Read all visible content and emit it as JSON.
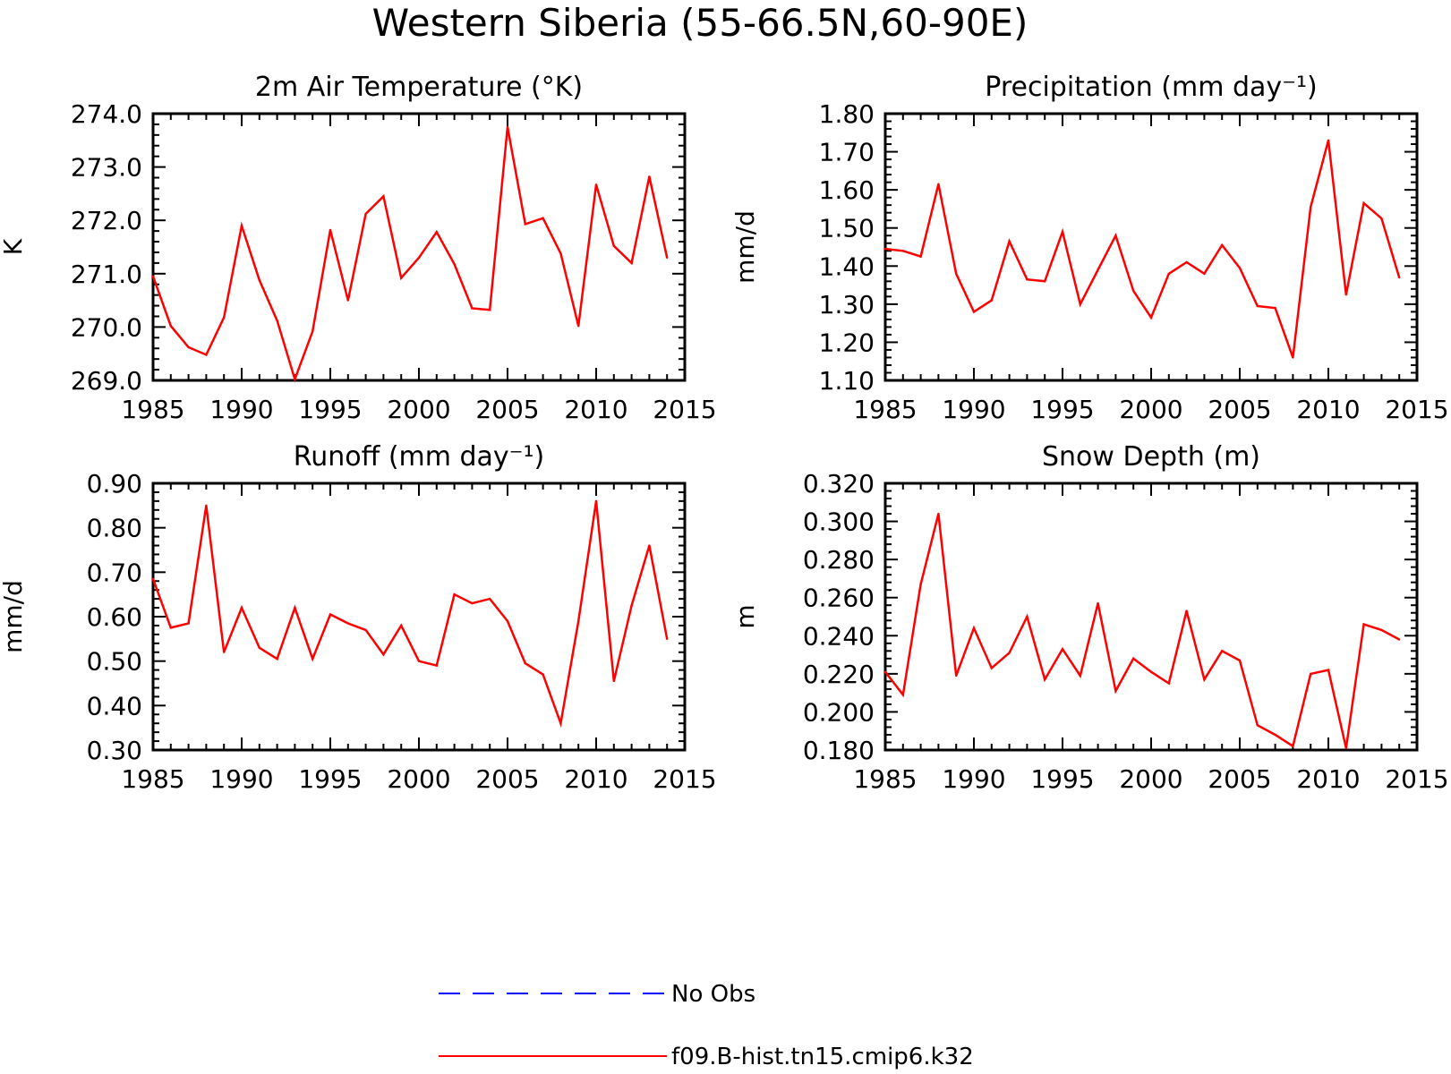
{
  "figure": {
    "title": "Western Siberia (55-66.5N,60-90E)",
    "colors": {
      "model": "#ff0000",
      "obs": "#0000ff",
      "axes": "#000000"
    }
  },
  "legend": {
    "entries": [
      {
        "label": "No Obs",
        "style": "dashed",
        "color": "#0000ff"
      },
      {
        "label": "f09.B-hist.tn15.cmip6.k32",
        "style": "solid",
        "color": "#ff0000"
      }
    ]
  },
  "chart_data": [
    {
      "type": "line",
      "title": "2m Air Temperature (°K)",
      "xlabel": "",
      "ylabel": "K",
      "xlim": [
        1985,
        2015
      ],
      "ylim": [
        269.0,
        274.0
      ],
      "xticks": [
        1985,
        1990,
        1995,
        2000,
        2005,
        2010,
        2015
      ],
      "yticks": [
        "269.0",
        "270.0",
        "271.0",
        "272.0",
        "273.0",
        "274.0"
      ],
      "x": [
        1985,
        1986,
        1987,
        1988,
        1989,
        1990,
        1991,
        1992,
        1993,
        1994,
        1995,
        1996,
        1997,
        1998,
        1999,
        2000,
        2001,
        2002,
        2003,
        2004,
        2005,
        2006,
        2007,
        2008,
        2009,
        2010,
        2011,
        2012,
        2013,
        2014
      ],
      "series": [
        {
          "name": "f09.B-hist.tn15.cmip6.k32",
          "values": [
            270.95,
            270.02,
            269.62,
            269.48,
            270.18,
            271.9,
            270.88,
            270.12,
            269.02,
            269.92,
            271.82,
            270.5,
            272.12,
            272.45,
            270.92,
            271.3,
            271.78,
            271.18,
            270.35,
            270.32,
            273.75,
            271.93,
            272.04,
            271.38,
            270.02,
            272.67,
            271.52,
            271.2,
            272.82,
            271.3
          ]
        }
      ],
      "grid": false
    },
    {
      "type": "line",
      "title": "Precipitation (mm day⁻¹)",
      "xlabel": "",
      "ylabel": "mm/d",
      "xlim": [
        1985,
        2015
      ],
      "ylim": [
        1.1,
        1.8
      ],
      "xticks": [
        1985,
        1990,
        1995,
        2000,
        2005,
        2010,
        2015
      ],
      "yticks": [
        "1.10",
        "1.20",
        "1.30",
        "1.40",
        "1.50",
        "1.60",
        "1.70",
        "1.80"
      ],
      "x": [
        1985,
        1986,
        1987,
        1988,
        1989,
        1990,
        1991,
        1992,
        1993,
        1994,
        1995,
        1996,
        1997,
        1998,
        1999,
        2000,
        2001,
        2002,
        2003,
        2004,
        2005,
        2006,
        2007,
        2008,
        2009,
        2010,
        2011,
        2012,
        2013,
        2014
      ],
      "series": [
        {
          "name": "f09.B-hist.tn15.cmip6.k32",
          "values": [
            1.445,
            1.44,
            1.425,
            1.615,
            1.38,
            1.28,
            1.31,
            1.465,
            1.365,
            1.36,
            1.49,
            1.3,
            1.39,
            1.48,
            1.335,
            1.265,
            1.38,
            1.41,
            1.38,
            1.455,
            1.395,
            1.295,
            1.29,
            1.16,
            1.555,
            1.73,
            1.325,
            1.565,
            1.525,
            1.37
          ]
        }
      ],
      "grid": false
    },
    {
      "type": "line",
      "title": "Runoff (mm day⁻¹)",
      "xlabel": "",
      "ylabel": "mm/d",
      "xlim": [
        1985,
        2015
      ],
      "ylim": [
        0.3,
        0.9
      ],
      "xticks": [
        1985,
        1990,
        1995,
        2000,
        2005,
        2010,
        2015
      ],
      "yticks": [
        "0.30",
        "0.40",
        "0.50",
        "0.60",
        "0.70",
        "0.80",
        "0.90"
      ],
      "x": [
        1985,
        1986,
        1987,
        1988,
        1989,
        1990,
        1991,
        1992,
        1993,
        1994,
        1995,
        1996,
        1997,
        1998,
        1999,
        2000,
        2001,
        2002,
        2003,
        2004,
        2005,
        2006,
        2007,
        2008,
        2009,
        2010,
        2011,
        2012,
        2013,
        2014
      ],
      "series": [
        {
          "name": "f09.B-hist.tn15.cmip6.k32",
          "values": [
            0.685,
            0.575,
            0.585,
            0.85,
            0.52,
            0.62,
            0.53,
            0.505,
            0.62,
            0.505,
            0.605,
            0.585,
            0.57,
            0.515,
            0.58,
            0.5,
            0.49,
            0.65,
            0.63,
            0.64,
            0.59,
            0.495,
            0.47,
            0.36,
            0.59,
            0.86,
            0.455,
            0.625,
            0.76,
            0.55
          ]
        }
      ],
      "grid": false
    },
    {
      "type": "line",
      "title": "Snow Depth (m)",
      "xlabel": "",
      "ylabel": "m",
      "xlim": [
        1985,
        2015
      ],
      "ylim": [
        0.18,
        0.32
      ],
      "xticks": [
        1985,
        1990,
        1995,
        2000,
        2005,
        2010,
        2015
      ],
      "yticks": [
        "0.180",
        "0.200",
        "0.220",
        "0.240",
        "0.260",
        "0.280",
        "0.300",
        "0.320"
      ],
      "x": [
        1985,
        1986,
        1987,
        1988,
        1989,
        1990,
        1991,
        1992,
        1993,
        1994,
        1995,
        1996,
        1997,
        1998,
        1999,
        2000,
        2001,
        2002,
        2003,
        2004,
        2005,
        2006,
        2007,
        2008,
        2009,
        2010,
        2011,
        2012,
        2013,
        2014
      ],
      "series": [
        {
          "name": "f09.B-hist.tn15.cmip6.k32",
          "values": [
            0.221,
            0.209,
            0.267,
            0.304,
            0.219,
            0.244,
            0.223,
            0.231,
            0.25,
            0.217,
            0.233,
            0.219,
            0.257,
            0.211,
            0.228,
            0.221,
            0.215,
            0.253,
            0.217,
            0.232,
            0.227,
            0.193,
            0.188,
            0.182,
            0.22,
            0.222,
            0.181,
            0.246,
            0.243,
            0.238
          ]
        }
      ],
      "grid": false
    }
  ]
}
